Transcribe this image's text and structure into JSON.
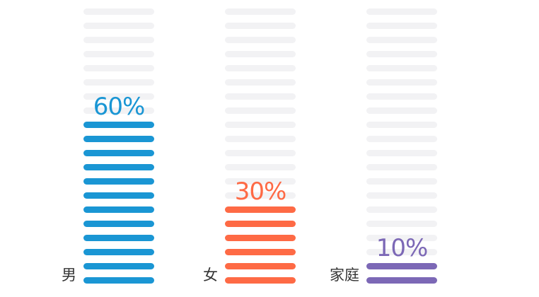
{
  "chart_data": {
    "type": "bar",
    "categories": [
      "男",
      "女",
      "家庭"
    ],
    "series": [
      {
        "values": [
          60,
          30,
          10
        ],
        "value_labels": [
          "60%",
          "30%",
          "10%"
        ],
        "colors": [
          "#1a96d4",
          "#fe6a45",
          "#7c68b6"
        ]
      }
    ],
    "ylim": [
      0,
      100
    ],
    "unit": "%",
    "segments_per_bar": 20,
    "empty_segment_color": "#f2f2f4",
    "label_color": "#333333"
  }
}
